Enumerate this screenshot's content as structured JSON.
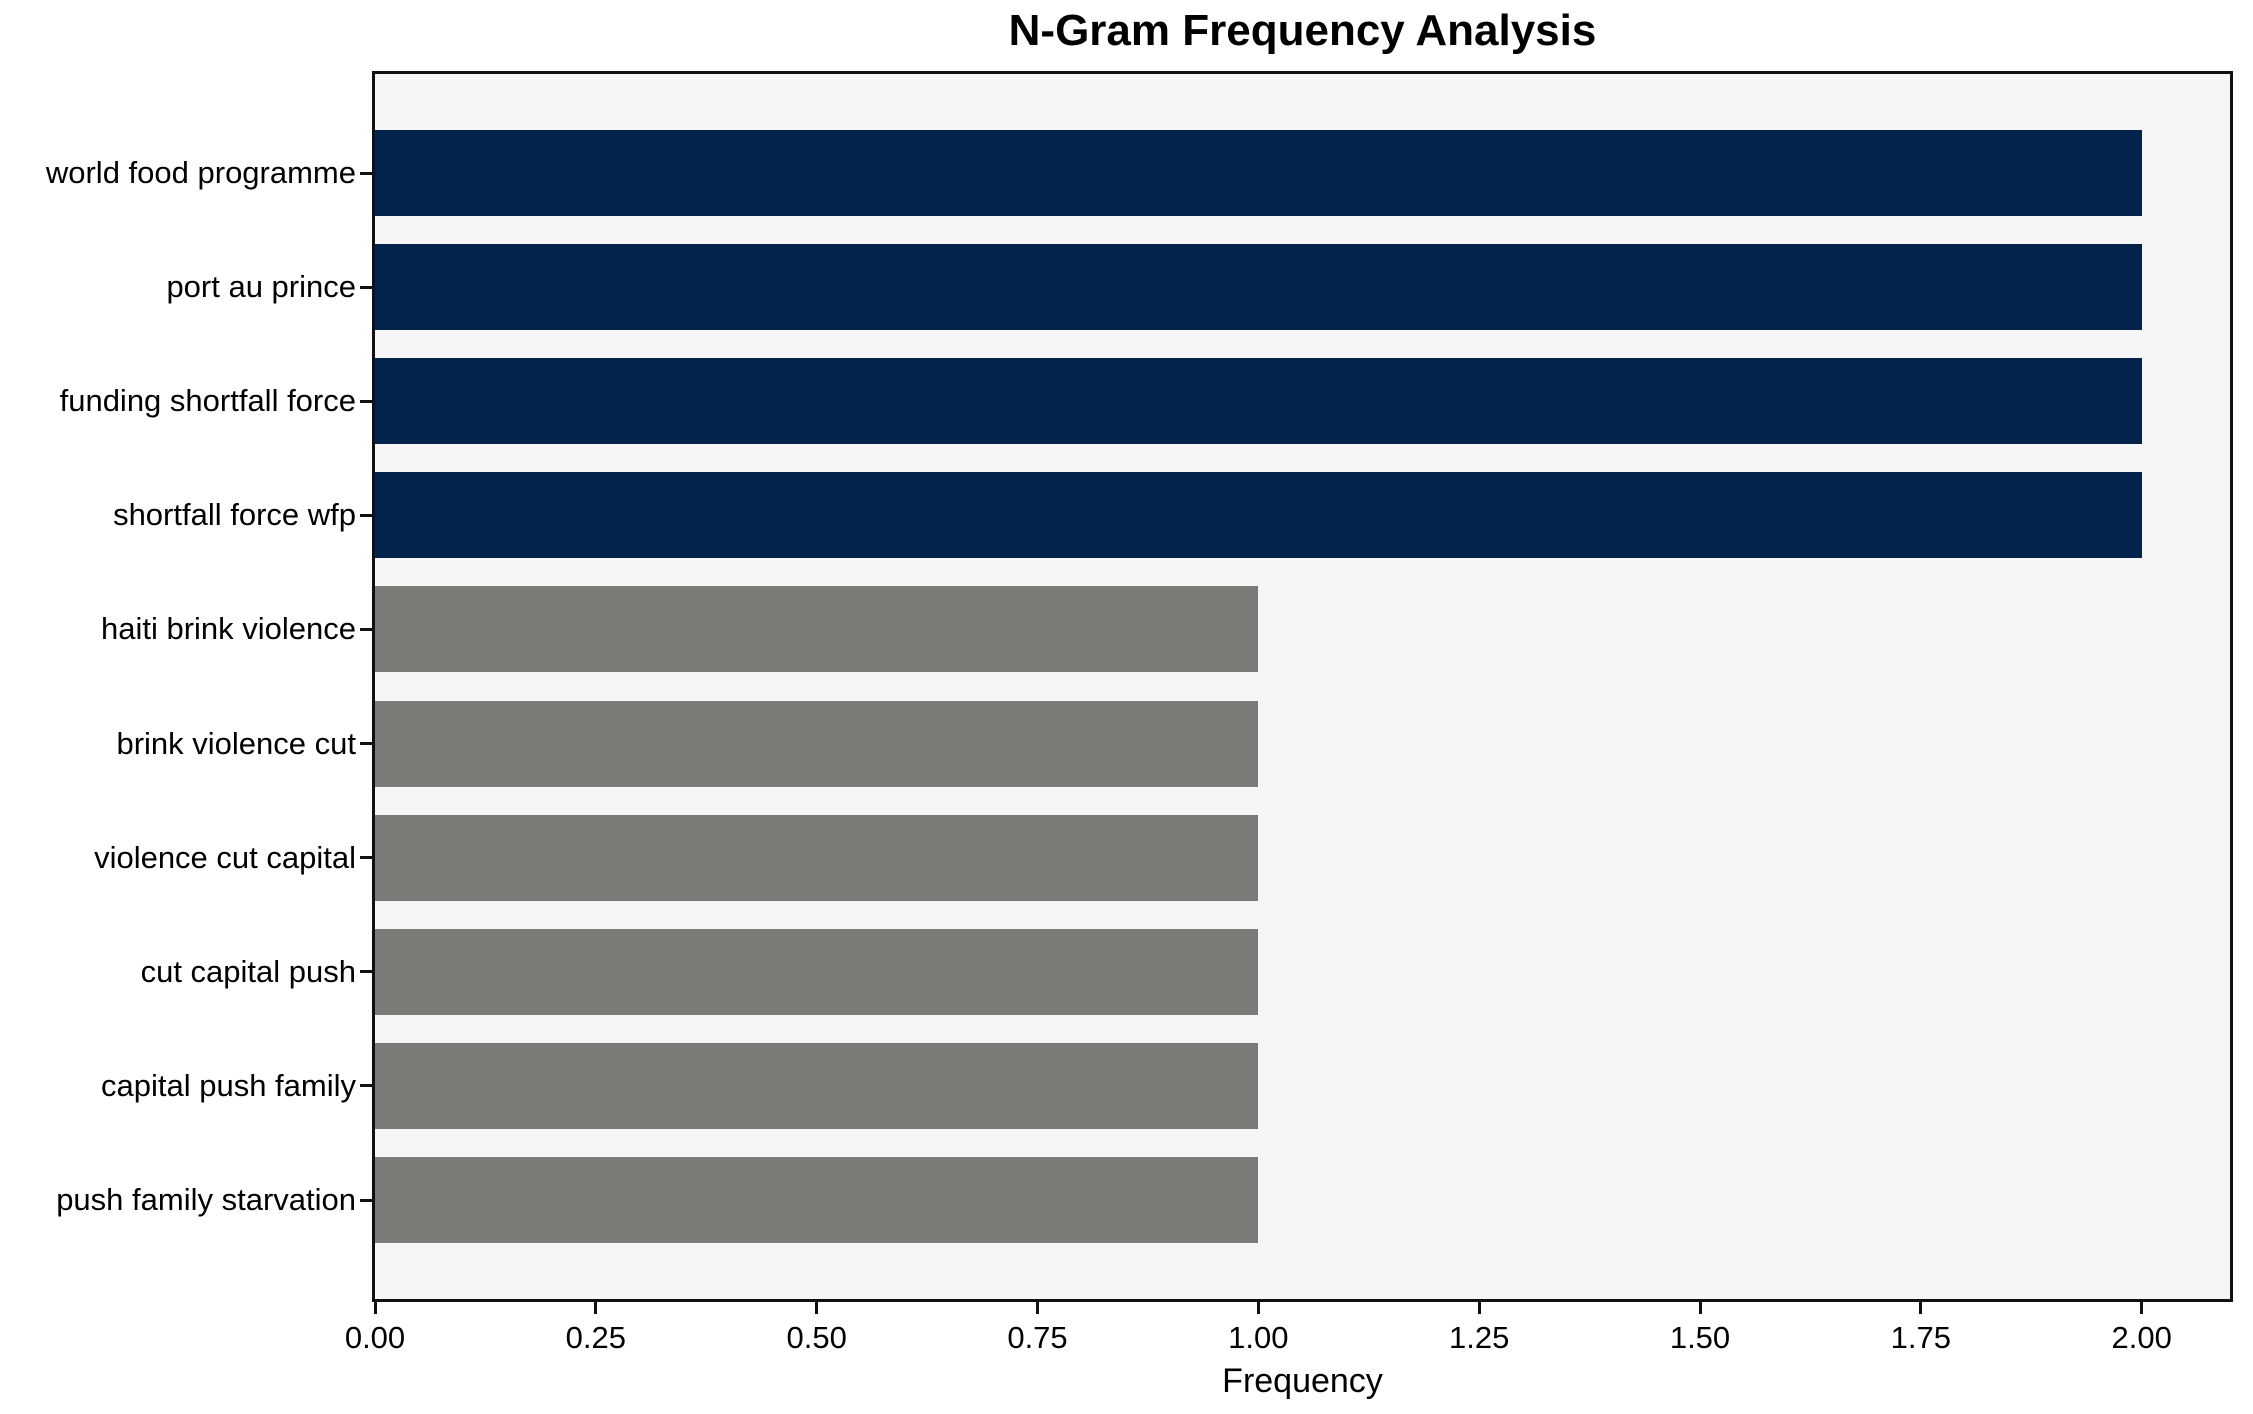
{
  "chart_data": {
    "type": "bar",
    "orientation": "horizontal",
    "title": "N-Gram Frequency Analysis",
    "xlabel": "Frequency",
    "ylabel": "",
    "categories": [
      "world food programme",
      "port au prince",
      "funding shortfall force",
      "shortfall force wfp",
      "haiti brink violence",
      "brink violence cut",
      "violence cut capital",
      "cut capital push",
      "capital push family",
      "push family starvation"
    ],
    "values": [
      2,
      2,
      2,
      2,
      1,
      1,
      1,
      1,
      1,
      1
    ],
    "bar_colors": [
      "#02234c",
      "#02234c",
      "#02234c",
      "#02234c",
      "#7b7a76",
      "#7b7a76",
      "#7b7a76",
      "#7b7a76",
      "#7b7a76",
      "#7b7a76"
    ],
    "xlim": [
      0,
      2.1
    ],
    "xticks": [
      0.0,
      0.25,
      0.5,
      0.75,
      1.0,
      1.25,
      1.5,
      1.75,
      2.0
    ],
    "xtick_labels": [
      "0.00",
      "0.25",
      "0.50",
      "0.75",
      "1.00",
      "1.25",
      "1.50",
      "1.75",
      "2.00"
    ],
    "grid": false,
    "legend": null,
    "colors": {
      "highlight_bar": "#02234c",
      "default_bar": "#7b7a76",
      "plot_background": "#f6f6f7",
      "figure_background": "#ffffff",
      "spine": "#111111",
      "text": "#000000"
    }
  }
}
